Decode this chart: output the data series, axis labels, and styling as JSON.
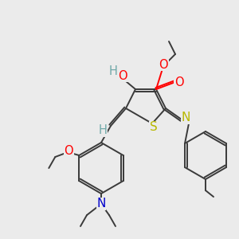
{
  "background_color": "#ebebeb",
  "bond_color": "#3a3a3a",
  "atom_colors": {
    "O": "#ff0000",
    "N": "#0000cc",
    "S": "#b8b800",
    "H": "#6fa8a8"
  },
  "lw": 1.4,
  "fs": 10.5
}
